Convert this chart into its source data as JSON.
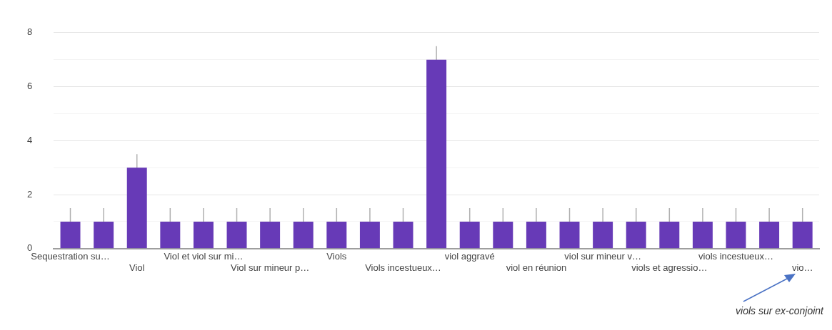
{
  "chart_data": {
    "type": "bar",
    "categories": [
      "Sequestration su…",
      null,
      "Viol",
      null,
      "Viol et viol sur mi…",
      null,
      "Viol sur mineur p…",
      null,
      "Viols",
      null,
      "Viols incestueux…",
      null,
      "viol aggravé",
      null,
      "viol en réunion",
      null,
      "viol sur mineur v…",
      null,
      "viols et agressio…",
      null,
      "viols incestueux…",
      null,
      "vio…"
    ],
    "values": [
      1,
      1,
      3,
      1,
      1,
      1,
      1,
      1,
      1,
      1,
      1,
      7,
      1,
      1,
      1,
      1,
      1,
      1,
      1,
      1,
      1,
      1,
      1
    ],
    "errors": [
      0.5,
      0.5,
      0.5,
      0.5,
      0.5,
      0.5,
      0.5,
      0.5,
      0.5,
      0.5,
      0.5,
      0.5,
      0.5,
      0.5,
      0.5,
      0.5,
      0.5,
      0.5,
      0.5,
      0.5,
      0.5,
      0.5,
      0.5
    ],
    "color": "#673ab7",
    "ylim": [
      0,
      8
    ],
    "yticks": [
      0,
      {
        "value": 1,
        "label": null
      },
      2,
      {
        "value": 3,
        "label": null
      },
      4,
      {
        "value": 5,
        "label": null
      },
      6,
      {
        "value": 7,
        "label": null
      },
      8
    ],
    "grid": "y",
    "legend": false,
    "annotations": [
      "viols sur ex-conjoint"
    ]
  }
}
